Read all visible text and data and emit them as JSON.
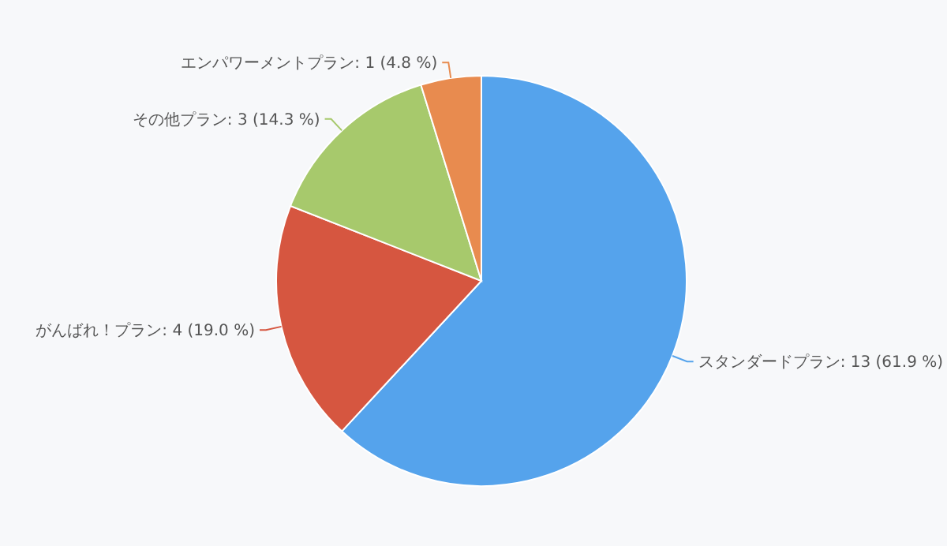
{
  "chart_data": {
    "type": "pie",
    "categories": [
      "スタンダードプラン",
      "がんばれ！プラン",
      "その他プラン",
      "エンパワーメントプラン"
    ],
    "values": [
      13,
      4,
      3,
      1
    ],
    "value_labels": [
      "13 (61.9 %)",
      "4 (19.0 %)",
      "3 (14.3 %)",
      "1 (4.8 %)"
    ],
    "colors": [
      "#55a3ec",
      "#d65640",
      "#a7c96c",
      "#e88b4f"
    ]
  }
}
